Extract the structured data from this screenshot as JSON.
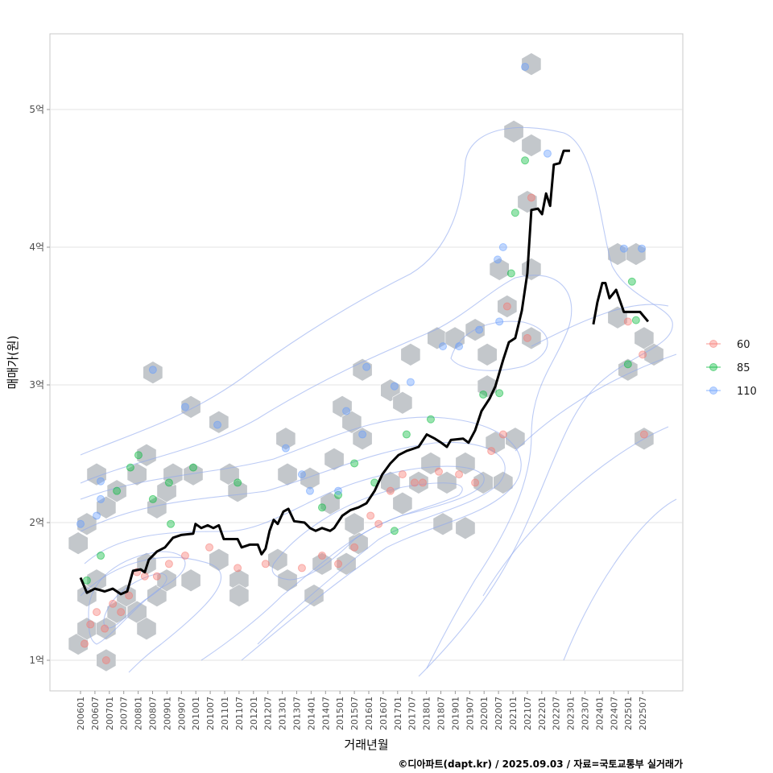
{
  "chart_data": {
    "type": "scatter",
    "xlabel": "거래년월",
    "ylabel": "매매가(원)",
    "caption": "©디아파트(dapt.kr) / 2025.09.03 / 자료=국토교통부 실거래가",
    "x_unit": "decimal year",
    "y_unit": "억원",
    "xlim": [
      2004.9,
      2026.9
    ],
    "ylim": [
      0.78,
      5.55
    ],
    "grid": true,
    "x_ticks": [
      "200601",
      "200607",
      "200701",
      "200707",
      "200801",
      "200807",
      "200901",
      "200907",
      "201001",
      "201007",
      "201101",
      "201107",
      "201201",
      "201207",
      "201301",
      "201307",
      "201401",
      "201407",
      "201501",
      "201507",
      "201601",
      "201607",
      "201701",
      "201707",
      "201801",
      "201807",
      "201901",
      "201907",
      "202001",
      "202007",
      "202101",
      "202107",
      "202201",
      "202207",
      "202301",
      "202307",
      "202401",
      "202407",
      "202501",
      "202507"
    ],
    "y_ticks": [
      {
        "value": 1,
        "label": "1억"
      },
      {
        "value": 2,
        "label": "2억"
      },
      {
        "value": 3,
        "label": "3억"
      },
      {
        "value": 4,
        "label": "4억"
      },
      {
        "value": 5,
        "label": "5억"
      }
    ],
    "legend": {
      "placement": "right",
      "entries": [
        {
          "label": "60",
          "color": "#F8766D"
        },
        {
          "label": "85",
          "color": "#00BA38"
        },
        {
          "label": "110",
          "color": "#619CFF"
        }
      ]
    },
    "hexbins": [
      [
        2005.92,
        1.12
      ],
      [
        2006.22,
        1.23
      ],
      [
        2006.22,
        1.47
      ],
      [
        2006.56,
        1.58
      ],
      [
        2006.89,
        1.0
      ],
      [
        2006.89,
        1.23
      ],
      [
        2007.26,
        1.35
      ],
      [
        2007.59,
        1.47
      ],
      [
        2007.96,
        1.35
      ],
      [
        2008.29,
        1.23
      ],
      [
        2008.29,
        1.7
      ],
      [
        2008.65,
        1.47
      ],
      [
        2008.99,
        1.58
      ],
      [
        2009.83,
        1.58
      ],
      [
        2005.92,
        1.85
      ],
      [
        2006.22,
        1.99
      ],
      [
        2006.56,
        2.35
      ],
      [
        2006.89,
        2.11
      ],
      [
        2007.26,
        2.23
      ],
      [
        2007.96,
        2.35
      ],
      [
        2008.29,
        2.49
      ],
      [
        2008.65,
        2.11
      ],
      [
        2008.99,
        2.23
      ],
      [
        2009.21,
        2.35
      ],
      [
        2009.91,
        2.35
      ],
      [
        2008.51,
        3.09
      ],
      [
        2009.83,
        2.84
      ],
      [
        2010.8,
        2.73
      ],
      [
        2011.17,
        2.35
      ],
      [
        2011.45,
        2.23
      ],
      [
        2010.8,
        1.73
      ],
      [
        2011.5,
        1.58
      ],
      [
        2011.5,
        1.47
      ],
      [
        2012.84,
        1.73
      ],
      [
        2013.18,
        1.58
      ],
      [
        2014.1,
        1.47
      ],
      [
        2014.38,
        1.7
      ],
      [
        2015.22,
        1.7
      ],
      [
        2015.64,
        1.85
      ],
      [
        2015.5,
        1.99
      ],
      [
        2014.66,
        2.14
      ],
      [
        2013.96,
        2.32
      ],
      [
        2013.18,
        2.35
      ],
      [
        2013.12,
        2.61
      ],
      [
        2014.8,
        2.46
      ],
      [
        2015.08,
        2.84
      ],
      [
        2015.41,
        2.73
      ],
      [
        2015.78,
        2.61
      ],
      [
        2015.78,
        3.11
      ],
      [
        2016.75,
        2.96
      ],
      [
        2017.17,
        2.87
      ],
      [
        2017.45,
        3.22
      ],
      [
        2016.75,
        2.29
      ],
      [
        2017.17,
        2.14
      ],
      [
        2017.73,
        2.29
      ],
      [
        2018.15,
        2.43
      ],
      [
        2018.71,
        2.29
      ],
      [
        2019.35,
        2.43
      ],
      [
        2019.97,
        2.29
      ],
      [
        2020.39,
        2.58
      ],
      [
        2020.66,
        2.29
      ],
      [
        2021.08,
        2.61
      ],
      [
        2018.57,
        1.99
      ],
      [
        2019.35,
        1.96
      ],
      [
        2018.37,
        3.34
      ],
      [
        2018.99,
        3.34
      ],
      [
        2019.69,
        3.4
      ],
      [
        2020.11,
        3.22
      ],
      [
        2020.11,
        2.99
      ],
      [
        2020.53,
        3.84
      ],
      [
        2020.8,
        3.57
      ],
      [
        2021.64,
        3.84
      ],
      [
        2021.64,
        3.34
      ],
      [
        2021.5,
        4.33
      ],
      [
        2021.64,
        4.74
      ],
      [
        2021.03,
        4.84
      ],
      [
        2021.64,
        5.33
      ],
      [
        2024.63,
        3.95
      ],
      [
        2025.27,
        3.95
      ],
      [
        2024.63,
        3.49
      ],
      [
        2024.99,
        3.11
      ],
      [
        2025.55,
        3.34
      ],
      [
        2025.89,
        3.22
      ],
      [
        2025.55,
        2.61
      ]
    ],
    "series": [
      {
        "name": "60",
        "color": "#F8766D",
        "points": [
          [
            2006.14,
            1.12
          ],
          [
            2006.34,
            1.26
          ],
          [
            2006.56,
            1.35
          ],
          [
            2006.84,
            1.23
          ],
          [
            2007.12,
            1.41
          ],
          [
            2007.4,
            1.35
          ],
          [
            2007.68,
            1.47
          ],
          [
            2007.96,
            1.64
          ],
          [
            2008.23,
            1.61
          ],
          [
            2008.65,
            1.61
          ],
          [
            2009.07,
            1.7
          ],
          [
            2009.63,
            1.76
          ],
          [
            2010.47,
            1.82
          ],
          [
            2011.45,
            1.67
          ],
          [
            2012.42,
            1.7
          ],
          [
            2013.68,
            1.67
          ],
          [
            2014.38,
            1.76
          ],
          [
            2014.94,
            1.7
          ],
          [
            2015.5,
            1.82
          ],
          [
            2016.06,
            2.05
          ],
          [
            2016.34,
            1.99
          ],
          [
            2016.75,
            2.23
          ],
          [
            2017.17,
            2.35
          ],
          [
            2017.59,
            2.29
          ],
          [
            2017.87,
            2.29
          ],
          [
            2018.43,
            2.37
          ],
          [
            2019.13,
            2.35
          ],
          [
            2019.69,
            2.29
          ],
          [
            2020.25,
            2.52
          ],
          [
            2020.66,
            2.64
          ],
          [
            2020.8,
            3.57
          ],
          [
            2021.5,
            3.34
          ],
          [
            2021.64,
            4.36
          ],
          [
            2024.99,
            3.46
          ],
          [
            2025.5,
            3.22
          ],
          [
            2025.55,
            2.64
          ],
          [
            2006.89,
            1.0
          ]
        ]
      },
      {
        "name": "85",
        "color": "#00BA38",
        "points": [
          [
            2006.22,
            1.58
          ],
          [
            2006.7,
            1.76
          ],
          [
            2007.26,
            2.23
          ],
          [
            2007.73,
            2.4
          ],
          [
            2008.01,
            2.49
          ],
          [
            2008.51,
            2.17
          ],
          [
            2009.07,
            2.29
          ],
          [
            2009.13,
            1.99
          ],
          [
            2009.91,
            2.4
          ],
          [
            2011.45,
            2.29
          ],
          [
            2014.38,
            2.11
          ],
          [
            2014.94,
            2.2
          ],
          [
            2015.5,
            2.43
          ],
          [
            2016.2,
            2.29
          ],
          [
            2016.89,
            1.94
          ],
          [
            2017.31,
            2.64
          ],
          [
            2018.15,
            2.75
          ],
          [
            2019.97,
            2.93
          ],
          [
            2020.53,
            2.94
          ],
          [
            2020.94,
            3.81
          ],
          [
            2021.08,
            4.25
          ],
          [
            2021.42,
            4.63
          ],
          [
            2025.13,
            3.75
          ],
          [
            2025.27,
            3.47
          ],
          [
            2024.99,
            3.15
          ]
        ]
      },
      {
        "name": "110",
        "color": "#619CFF",
        "points": [
          [
            2006.0,
            1.99
          ],
          [
            2006.56,
            2.05
          ],
          [
            2006.7,
            2.17
          ],
          [
            2006.7,
            2.3
          ],
          [
            2008.51,
            3.11
          ],
          [
            2009.63,
            2.84
          ],
          [
            2010.75,
            2.71
          ],
          [
            2013.12,
            2.54
          ],
          [
            2013.68,
            2.35
          ],
          [
            2013.96,
            2.23
          ],
          [
            2014.94,
            2.23
          ],
          [
            2015.22,
            2.81
          ],
          [
            2015.78,
            2.64
          ],
          [
            2015.92,
            3.13
          ],
          [
            2016.89,
            2.99
          ],
          [
            2017.45,
            3.02
          ],
          [
            2018.57,
            3.28
          ],
          [
            2019.13,
            3.28
          ],
          [
            2019.83,
            3.4
          ],
          [
            2020.53,
            3.46
          ],
          [
            2020.66,
            4.0
          ],
          [
            2020.47,
            3.91
          ],
          [
            2021.42,
            5.31
          ],
          [
            2022.2,
            4.68
          ],
          [
            2024.85,
            3.99
          ],
          [
            2025.47,
            3.99
          ]
        ]
      }
    ],
    "median_line": [
      [
        [
          2006.0,
          1.6
        ],
        [
          2006.22,
          1.49
        ],
        [
          2006.5,
          1.52
        ],
        [
          2006.84,
          1.5
        ],
        [
          2007.12,
          1.52
        ],
        [
          2007.4,
          1.48
        ],
        [
          2007.62,
          1.5
        ],
        [
          2007.82,
          1.65
        ],
        [
          2008.09,
          1.66
        ],
        [
          2008.23,
          1.64
        ],
        [
          2008.37,
          1.73
        ],
        [
          2008.65,
          1.79
        ],
        [
          2008.93,
          1.82
        ],
        [
          2009.21,
          1.89
        ],
        [
          2009.49,
          1.91
        ],
        [
          2009.91,
          1.92
        ],
        [
          2009.99,
          1.99
        ],
        [
          2010.19,
          1.96
        ],
        [
          2010.41,
          1.98
        ],
        [
          2010.61,
          1.96
        ],
        [
          2010.8,
          1.98
        ],
        [
          2010.97,
          1.88
        ],
        [
          2011.45,
          1.88
        ],
        [
          2011.59,
          1.82
        ],
        [
          2011.87,
          1.84
        ],
        [
          2012.15,
          1.84
        ],
        [
          2012.28,
          1.77
        ],
        [
          2012.42,
          1.81
        ],
        [
          2012.56,
          1.94
        ],
        [
          2012.7,
          2.02
        ],
        [
          2012.84,
          1.99
        ],
        [
          2013.04,
          2.08
        ],
        [
          2013.21,
          2.1
        ],
        [
          2013.41,
          2.01
        ],
        [
          2013.77,
          2.0
        ],
        [
          2013.96,
          1.96
        ],
        [
          2014.16,
          1.94
        ],
        [
          2014.38,
          1.96
        ],
        [
          2014.66,
          1.94
        ],
        [
          2014.8,
          1.96
        ],
        [
          2015.08,
          2.05
        ],
        [
          2015.36,
          2.09
        ],
        [
          2015.64,
          2.11
        ],
        [
          2015.92,
          2.14
        ],
        [
          2016.2,
          2.23
        ],
        [
          2016.47,
          2.35
        ],
        [
          2016.75,
          2.43
        ],
        [
          2017.03,
          2.49
        ],
        [
          2017.31,
          2.52
        ],
        [
          2017.73,
          2.55
        ],
        [
          2018.01,
          2.64
        ],
        [
          2018.29,
          2.61
        ],
        [
          2018.51,
          2.58
        ],
        [
          2018.71,
          2.55
        ],
        [
          2018.85,
          2.6
        ],
        [
          2019.27,
          2.61
        ],
        [
          2019.46,
          2.58
        ],
        [
          2019.69,
          2.67
        ],
        [
          2019.91,
          2.81
        ],
        [
          2020.19,
          2.9
        ],
        [
          2020.39,
          2.99
        ],
        [
          2020.66,
          3.18
        ],
        [
          2020.86,
          3.31
        ],
        [
          2021.08,
          3.34
        ],
        [
          2021.31,
          3.54
        ],
        [
          2021.5,
          3.81
        ],
        [
          2021.64,
          4.27
        ],
        [
          2021.87,
          4.28
        ],
        [
          2022.01,
          4.24
        ],
        [
          2022.15,
          4.39
        ],
        [
          2022.29,
          4.3
        ],
        [
          2022.42,
          4.6
        ],
        [
          2022.62,
          4.61
        ],
        [
          2022.76,
          4.7
        ],
        [
          2022.98,
          4.7
        ]
      ],
      [
        [
          2023.79,
          3.44
        ],
        [
          2023.93,
          3.6
        ],
        [
          2024.1,
          3.74
        ],
        [
          2024.21,
          3.74
        ],
        [
          2024.35,
          3.63
        ],
        [
          2024.58,
          3.69
        ],
        [
          2024.85,
          3.53
        ],
        [
          2025.41,
          3.53
        ],
        [
          2025.69,
          3.46
        ]
      ]
    ]
  }
}
